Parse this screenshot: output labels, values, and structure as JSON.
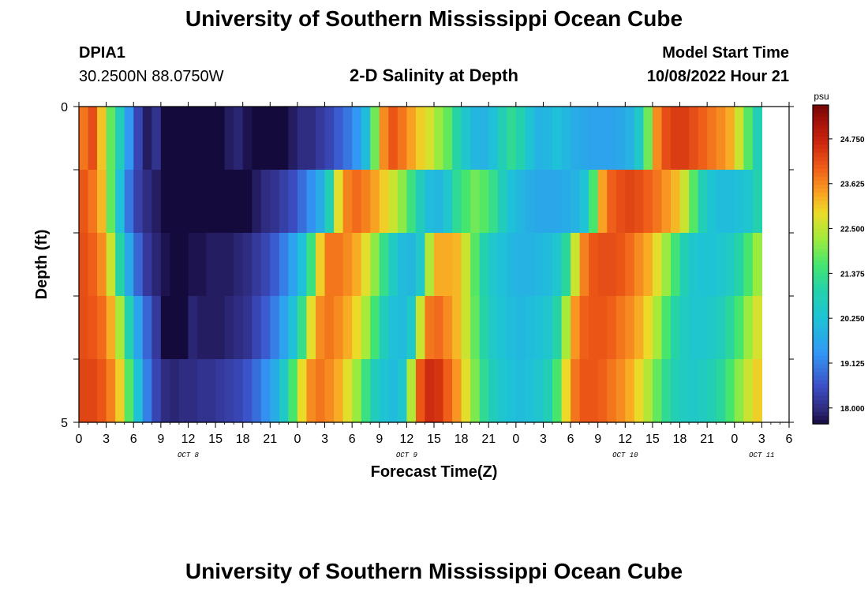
{
  "header": {
    "title": "University of Southern Mississippi Ocean Cube",
    "station": "DPIA1",
    "latlon": "30.2500N  88.0750W",
    "subtitle": "2-D Salinity at Depth",
    "model_start_label": "Model Start Time",
    "model_start_value": "10/08/2022 Hour 21"
  },
  "footer": {
    "title": "University of Southern Mississippi Ocean Cube"
  },
  "chart_data": {
    "type": "heatmap",
    "title": "2-D Salinity at Depth",
    "xlabel": "Forecast Time(Z)",
    "ylabel": "Depth (ft)",
    "y_ticks": [
      "0",
      "5"
    ],
    "ylim": [
      0,
      5
    ],
    "x_tick_labels": [
      "0",
      "3",
      "6",
      "9",
      "12",
      "15",
      "18",
      "21",
      "0",
      "3",
      "6",
      "9",
      "12",
      "15",
      "18",
      "21",
      "0",
      "3",
      "6",
      "9",
      "12",
      "15",
      "18",
      "21",
      "0",
      "3",
      "6"
    ],
    "x_hours_from_start": [
      0,
      3,
      6,
      9,
      12,
      15,
      18,
      21,
      24,
      27,
      30,
      33,
      36,
      39,
      42,
      45,
      48,
      51,
      54,
      57,
      60,
      63,
      66,
      69,
      72,
      75,
      78
    ],
    "date_labels": [
      {
        "text": "OCT 8",
        "hour": 12
      },
      {
        "text": "OCT 9",
        "hour": 36
      },
      {
        "text": "OCT 10",
        "hour": 60
      },
      {
        "text": "OCT 11",
        "hour": 75
      }
    ],
    "colorbar": {
      "unit": "psu",
      "ticks": [
        "24.750",
        "23.625",
        "22.500",
        "21.375",
        "20.250",
        "19.125",
        "18.000"
      ],
      "range": [
        17.6,
        25.6
      ]
    },
    "depth_rows": 5,
    "time_start_hour": 0,
    "time_step_hours": 1,
    "salinity": [
      [
        23.8,
        24.2,
        23.1,
        21.8,
        20.7,
        19.4,
        18.4,
        17.8,
        18.1,
        17.5,
        17.0,
        16.8,
        16.9,
        17.2,
        17.4,
        17.6,
        17.8,
        17.9,
        17.7,
        17.5,
        17.3,
        17.4,
        17.6,
        17.8,
        18.0,
        18.0,
        18.2,
        18.4,
        18.7,
        19.0,
        19.4,
        20.1,
        21.9,
        23.6,
        24.1,
        23.8,
        23.4,
        23.0,
        22.7,
        22.2,
        21.8,
        21.0,
        20.4,
        20.0,
        19.9,
        20.2,
        20.8,
        21.2,
        20.9,
        20.3,
        19.9,
        20.0,
        20.2,
        20.0,
        19.8,
        19.7,
        19.6,
        19.6,
        19.6,
        19.7,
        19.9,
        20.5,
        21.9,
        23.6,
        24.2,
        24.4,
        24.4,
        24.2,
        24.0,
        23.8,
        23.6,
        23.3,
        22.6,
        21.7,
        20.8
      ],
      [
        24.1,
        23.8,
        23.2,
        21.8,
        20.2,
        19.0,
        18.3,
        18.0,
        17.8,
        17.6,
        17.4,
        17.2,
        17.1,
        17.2,
        17.5,
        17.6,
        17.5,
        17.4,
        17.6,
        17.8,
        18.0,
        18.1,
        18.3,
        18.5,
        18.9,
        19.3,
        19.8,
        20.8,
        22.8,
        23.7,
        23.9,
        23.7,
        23.4,
        23.0,
        22.6,
        22.1,
        21.4,
        20.7,
        20.1,
        20.0,
        20.4,
        21.2,
        21.6,
        21.9,
        21.7,
        21.3,
        20.7,
        20.2,
        20.0,
        19.8,
        19.7,
        19.7,
        19.7,
        19.8,
        19.9,
        20.3,
        21.6,
        23.4,
        24.0,
        24.2,
        24.3,
        24.2,
        24.0,
        23.8,
        23.5,
        23.2,
        22.6,
        21.7,
        20.8,
        20.3,
        20.1,
        20.1,
        20.2,
        20.4,
        20.9
      ],
      [
        24.2,
        24.0,
        23.6,
        22.6,
        21.0,
        19.7,
        18.8,
        18.2,
        17.9,
        17.7,
        17.6,
        17.6,
        17.7,
        17.7,
        17.8,
        17.8,
        17.8,
        17.9,
        18.0,
        18.2,
        18.4,
        18.7,
        19.1,
        19.6,
        20.2,
        21.4,
        23.0,
        23.8,
        23.8,
        23.6,
        23.3,
        22.8,
        22.1,
        21.3,
        20.6,
        20.1,
        20.0,
        20.5,
        22.4,
        23.3,
        23.3,
        23.2,
        22.6,
        21.7,
        20.9,
        20.4,
        20.2,
        20.0,
        19.9,
        19.9,
        20.0,
        20.1,
        20.4,
        21.1,
        22.6,
        23.7,
        24.1,
        24.2,
        24.2,
        24.1,
        23.9,
        23.6,
        23.3,
        22.8,
        22.2,
        21.5,
        20.8,
        20.4,
        20.3,
        20.3,
        20.4,
        20.6,
        21.0,
        21.6,
        22.2
      ],
      [
        24.2,
        24.1,
        23.9,
        23.3,
        22.3,
        20.9,
        19.6,
        18.8,
        18.2,
        17.6,
        17.3,
        17.6,
        17.9,
        17.8,
        17.8,
        17.8,
        17.9,
        18.0,
        18.1,
        18.4,
        18.7,
        19.1,
        19.6,
        20.2,
        21.3,
        22.8,
        23.6,
        23.8,
        23.6,
        23.3,
        22.9,
        22.3,
        21.5,
        20.7,
        20.2,
        20.1,
        20.5,
        22.6,
        23.8,
        23.9,
        23.6,
        23.2,
        22.6,
        21.8,
        21.0,
        20.5,
        20.3,
        20.1,
        20.0,
        20.1,
        20.2,
        20.4,
        21.0,
        22.3,
        23.5,
        24.0,
        24.1,
        24.1,
        24.0,
        23.8,
        23.6,
        23.3,
        22.9,
        22.3,
        21.6,
        21.0,
        20.6,
        20.4,
        20.4,
        20.5,
        20.7,
        21.1,
        21.6,
        22.2,
        22.7
      ],
      [
        24.3,
        24.3,
        24.1,
        23.7,
        23.0,
        21.7,
        20.2,
        19.1,
        18.4,
        18.0,
        17.9,
        18.0,
        18.0,
        18.1,
        18.1,
        18.2,
        18.3,
        18.4,
        18.6,
        18.9,
        19.3,
        19.8,
        20.5,
        21.6,
        22.9,
        23.6,
        23.8,
        23.6,
        23.3,
        22.8,
        22.2,
        21.4,
        20.7,
        20.3,
        20.1,
        20.4,
        22.4,
        24.1,
        24.6,
        24.5,
        24.0,
        23.5,
        22.8,
        22.0,
        21.2,
        20.7,
        20.4,
        20.2,
        20.1,
        20.2,
        20.4,
        20.8,
        21.6,
        22.9,
        23.8,
        24.1,
        24.1,
        24.0,
        23.8,
        23.6,
        23.3,
        22.9,
        22.4,
        21.8,
        21.2,
        20.8,
        20.6,
        20.5,
        20.6,
        20.8,
        21.1,
        21.6,
        22.1,
        22.6,
        23.0
      ]
    ]
  }
}
